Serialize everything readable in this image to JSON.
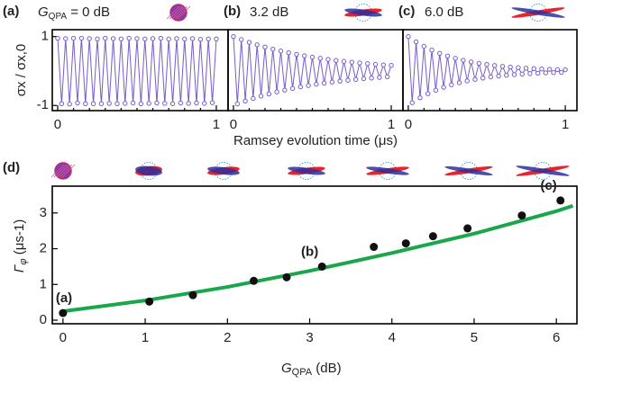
{
  "chart_data": [
    {
      "type": "line",
      "panel_label": "(a)",
      "title_symbol": "G",
      "title_subscript": "QPA",
      "title": " = 0 dB",
      "y_label": "σx / σx,0",
      "color": "#7a5cc8",
      "x": [
        0,
        0.025,
        0.05,
        0.075,
        0.1,
        0.125,
        0.15,
        0.175,
        0.2,
        0.225,
        0.25,
        0.275,
        0.3,
        0.325,
        0.35,
        0.375,
        0.4,
        0.425,
        0.45,
        0.475,
        0.5,
        0.525,
        0.55,
        0.575,
        0.6,
        0.625,
        0.65,
        0.675,
        0.7,
        0.725,
        0.75,
        0.775,
        0.8,
        0.825,
        0.85,
        0.875,
        0.9,
        0.925,
        0.95,
        0.975,
        1
      ],
      "values": [
        0.95,
        -0.95,
        0.94,
        -0.96,
        0.95,
        -0.93,
        0.95,
        -0.95,
        0.94,
        -0.95,
        0.93,
        -0.95,
        0.95,
        -0.94,
        0.94,
        -0.95,
        0.93,
        -0.94,
        0.95,
        -0.93,
        0.94,
        -0.95,
        0.93,
        -0.94,
        0.94,
        -0.93,
        0.95,
        -0.94,
        0.93,
        -0.95,
        0.94,
        -0.93,
        0.93,
        -0.94,
        0.94,
        -0.93,
        0.92,
        -0.94,
        0.93,
        -0.92,
        0.93
      ],
      "xlim": [
        -0.034,
        1.074
      ],
      "ylim": [
        -1.15,
        1.2
      ],
      "xticks": [
        0,
        1
      ],
      "yticks": [
        -1,
        1
      ]
    },
    {
      "type": "line",
      "panel_label": "(b)",
      "title": "3.2 dB",
      "x_label": "Ramsey evolution time (μs)",
      "color": "#7a5cc8",
      "x": [
        0,
        0.025,
        0.05,
        0.075,
        0.1,
        0.125,
        0.15,
        0.175,
        0.2,
        0.225,
        0.25,
        0.275,
        0.3,
        0.325,
        0.35,
        0.375,
        0.4,
        0.425,
        0.45,
        0.475,
        0.5,
        0.525,
        0.55,
        0.575,
        0.6,
        0.625,
        0.65,
        0.675,
        0.7,
        0.725,
        0.75,
        0.775,
        0.8,
        0.825,
        0.85,
        0.875,
        0.9,
        0.925,
        0.95,
        0.975,
        1
      ],
      "values": [
        1.0,
        -0.956,
        0.913,
        -0.873,
        0.834,
        -0.797,
        0.762,
        -0.728,
        0.696,
        -0.665,
        0.635,
        -0.607,
        0.58,
        -0.554,
        0.53,
        -0.506,
        0.484,
        -0.462,
        0.442,
        -0.422,
        0.403,
        -0.385,
        0.368,
        -0.352,
        0.336,
        -0.321,
        0.307,
        -0.293,
        0.28,
        -0.268,
        0.256,
        -0.245,
        0.234,
        -0.223,
        0.214,
        -0.204,
        0.195,
        -0.186,
        0.178,
        -0.17,
        0.163
      ],
      "xlim": [
        -0.034,
        1.074
      ],
      "ylim": [
        -1.15,
        1.2
      ],
      "xticks": [
        0,
        1
      ]
    },
    {
      "type": "line",
      "panel_label": "(c)",
      "title": "6.0 dB",
      "color": "#7a5cc8",
      "x": [
        0,
        0.025,
        0.05,
        0.075,
        0.1,
        0.125,
        0.15,
        0.175,
        0.2,
        0.225,
        0.25,
        0.275,
        0.3,
        0.325,
        0.35,
        0.375,
        0.4,
        0.425,
        0.45,
        0.475,
        0.5,
        0.525,
        0.55,
        0.575,
        0.6,
        0.625,
        0.65,
        0.675,
        0.7,
        0.725,
        0.75,
        0.775,
        0.8,
        0.825,
        0.85,
        0.875,
        0.9,
        0.925,
        0.95,
        0.975,
        1
      ],
      "values": [
        1.0,
        -0.92,
        0.846,
        -0.779,
        0.717,
        -0.659,
        0.607,
        -0.558,
        0.513,
        -0.472,
        0.435,
        -0.4,
        0.368,
        -0.339,
        0.311,
        -0.287,
        0.264,
        -0.243,
        0.223,
        -0.205,
        0.189,
        -0.174,
        0.16,
        -0.147,
        0.135,
        -0.124,
        0.115,
        -0.105,
        0.097,
        -0.089,
        0.082,
        -0.076,
        0.069,
        -0.064,
        0.059,
        -0.054,
        0.05,
        -0.046,
        0.042,
        -0.039,
        0.036
      ],
      "xlim": [
        -0.034,
        1.074
      ],
      "ylim": [
        -1.15,
        1.2
      ],
      "xticks": [
        0,
        1
      ]
    },
    {
      "type": "scatter",
      "panel_label": "(d)",
      "x_label_symbol": "G",
      "x_label_subscript": "QPA",
      "x_label": " (dB)",
      "y_label_symbol": "Γ",
      "y_label_subscript": "φ",
      "y_label": " (μs-1)",
      "x": [
        0,
        1.05,
        1.58,
        2.32,
        2.72,
        3.15,
        3.78,
        4.17,
        4.5,
        4.92,
        5.58,
        6.05
      ],
      "values": [
        0.2,
        0.52,
        0.7,
        1.1,
        1.2,
        1.5,
        2.05,
        2.15,
        2.35,
        2.57,
        2.93,
        3.35
      ],
      "color": "#111111",
      "fit": {
        "color": "#1aa64b",
        "x": [
          0,
          1,
          2,
          3,
          4,
          5,
          6,
          6.2
        ],
        "values": [
          0.25,
          0.55,
          0.93,
          1.38,
          1.88,
          2.42,
          3.05,
          3.2
        ]
      },
      "annotations": [
        {
          "text": "(a)",
          "x": 0,
          "y": 0.2
        },
        {
          "text": "(b)",
          "x": 3.15,
          "y": 1.5
        },
        {
          "text": "(c)",
          "x": 6.05,
          "y": 3.35
        }
      ],
      "xlim": [
        -0.13,
        6.25
      ],
      "ylim": [
        -0.1,
        3.75
      ],
      "xticks": [
        0,
        1,
        2,
        3,
        4,
        5,
        6
      ],
      "yticks": [
        0,
        1,
        2,
        3
      ]
    }
  ]
}
